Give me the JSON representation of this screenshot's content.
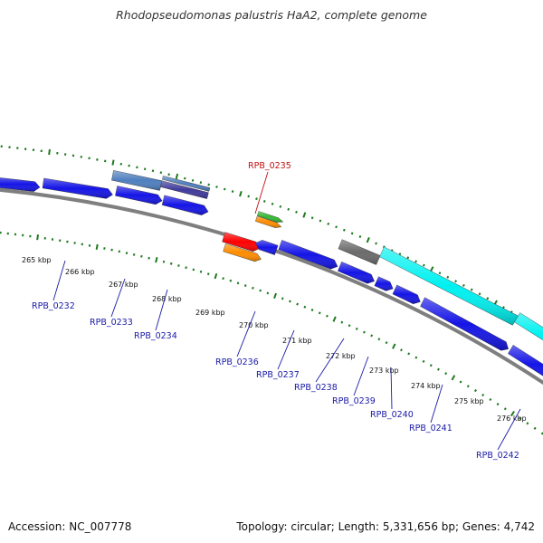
{
  "title": "Rhodopseudomonas palustris HaA2, complete genome",
  "footer": {
    "accession": "Accession: NC_007778",
    "summary": "Topology: circular; Length: 5,331,656 bp; Genes: 4,742"
  },
  "colors": {
    "backbone": "#7f7f7f",
    "tick": "#1e7a1e",
    "gene_blue": "#1515e6",
    "gene_steel": "#4f7fbf",
    "gene_purple": "#403a9c",
    "gene_orange": "#ff8c00",
    "gene_red": "#ff0000",
    "gene_green": "#33bb33",
    "gene_gray": "#6a6a6a",
    "gene_cyan": "#00f0f0",
    "label_blue": "#1a1aa6",
    "label_red": "#c01010"
  },
  "kbp_labels": [
    "265 kbp",
    "266 kbp",
    "267 kbp",
    "268 kbp",
    "269 kbp",
    "270 kbp",
    "271 kbp",
    "272 kbp",
    "273 kbp",
    "274 kbp",
    "275 kbp",
    "276 kbp"
  ],
  "gene_labels": [
    "RPB_0232",
    "RPB_0233",
    "RPB_0234",
    "RPB_0235",
    "RPB_0236",
    "RPB_0237",
    "RPB_0238",
    "RPB_0239",
    "RPB_0240",
    "RPB_0241",
    "RPB_0242"
  ]
}
